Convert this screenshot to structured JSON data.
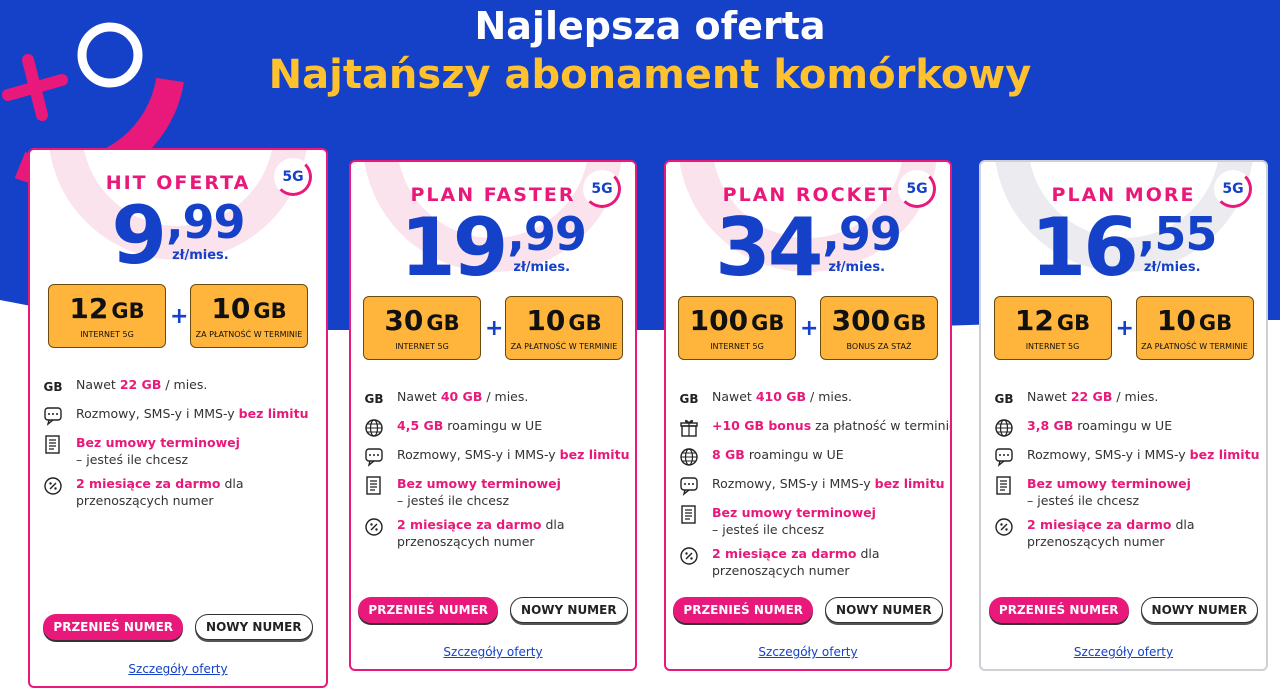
{
  "header": {
    "title": "Najlepsza oferta",
    "subtitle": "Najtańszy abonament komórkowy"
  },
  "plans": [
    {
      "name": "HIT OFERTA",
      "badge": "5G",
      "border": "#e8197a",
      "price_whole": "9",
      "price_fraction": ",99",
      "price_unit": "zł/mies.",
      "boxes": [
        {
          "amount": "12",
          "unit": "GB",
          "label": "INTERNET 5G"
        },
        {
          "amount": "10",
          "unit": "GB",
          "label": "ZA PŁATNOŚĆ W TERMINIE"
        }
      ],
      "box_joiner": "+",
      "features": [
        {
          "icon_text": "GB",
          "lines": [
            [
              "Nawet ",
              {
                "text": "22 GB",
                "hl": true
              },
              " / mies."
            ]
          ]
        },
        {
          "icon": "chat",
          "lines": [
            [
              "Rozmowy, SMS-y i MMS-y ",
              {
                "text": "bez limitu",
                "hl": true
              }
            ]
          ]
        },
        {
          "icon": "doc",
          "lines": [
            [
              {
                "text": "Bez umowy terminowej",
                "hl": true
              }
            ],
            [
              "– jesteś ile chcesz"
            ]
          ]
        },
        {
          "icon": "percent",
          "lines": [
            [
              {
                "text": "2 miesiące za darmo",
                "hl": true
              },
              " dla"
            ],
            [
              "przenoszących numer"
            ]
          ]
        }
      ],
      "buttons": [
        "PRZENIEŚ NUMER",
        "NOWY NUMER"
      ],
      "link": "Szczegóły oferty"
    },
    {
      "name": "PLAN FASTER",
      "badge": "5G",
      "border": "#e8197a",
      "price_whole": "19",
      "price_fraction": ",99",
      "price_unit": "zł/mies.",
      "boxes": [
        {
          "amount": "30",
          "unit": "GB",
          "label": "INTERNET 5G"
        },
        {
          "amount": "10",
          "unit": "GB",
          "label": "ZA PŁATNOŚĆ W TERMINIE"
        }
      ],
      "box_joiner": "+",
      "features": [
        {
          "icon_text": "GB",
          "lines": [
            [
              "Nawet ",
              {
                "text": "40 GB",
                "hl": true
              },
              " / mies."
            ]
          ]
        },
        {
          "icon": "globe",
          "lines": [
            [
              {
                "text": "4,5 GB",
                "hl": true
              },
              " roamingu w UE"
            ]
          ]
        },
        {
          "icon": "chat",
          "lines": [
            [
              "Rozmowy, SMS-y i MMS-y ",
              {
                "text": "bez limitu",
                "hl": true
              }
            ]
          ]
        },
        {
          "icon": "doc",
          "lines": [
            [
              {
                "text": "Bez umowy terminowej",
                "hl": true
              }
            ],
            [
              "– jesteś ile chcesz"
            ]
          ]
        },
        {
          "icon": "percent",
          "lines": [
            [
              {
                "text": "2 miesiące za darmo",
                "hl": true
              },
              " dla"
            ],
            [
              "przenoszących numer"
            ]
          ]
        }
      ],
      "buttons": [
        "PRZENIEŚ NUMER",
        "NOWY NUMER"
      ],
      "link": "Szczegóły oferty"
    },
    {
      "name": "PLAN ROCKET",
      "badge": "5G",
      "border": "#e8197a",
      "price_whole": "34",
      "price_fraction": ",99",
      "price_unit": "zł/mies.",
      "boxes": [
        {
          "amount": "100",
          "unit": "GB",
          "label": "INTERNET 5G"
        },
        {
          "amount": "300",
          "unit": "GB",
          "label": "BONUS ZA STAŻ"
        }
      ],
      "box_joiner": "+",
      "features": [
        {
          "icon_text": "GB",
          "lines": [
            [
              "Nawet ",
              {
                "text": "410 GB",
                "hl": true
              },
              " / mies."
            ]
          ]
        },
        {
          "icon": "gift",
          "lines": [
            [
              {
                "text": "+10 GB bonus",
                "hl": true
              },
              " za płatność w terminie"
            ]
          ]
        },
        {
          "icon": "globe",
          "lines": [
            [
              {
                "text": "8 GB",
                "hl": true
              },
              " roamingu w UE"
            ]
          ]
        },
        {
          "icon": "chat",
          "lines": [
            [
              "Rozmowy, SMS-y i MMS-y ",
              {
                "text": "bez limitu",
                "hl": true
              }
            ]
          ]
        },
        {
          "icon": "doc",
          "lines": [
            [
              {
                "text": "Bez umowy terminowej",
                "hl": true
              }
            ],
            [
              "– jesteś ile chcesz"
            ]
          ]
        },
        {
          "icon": "percent",
          "lines": [
            [
              {
                "text": "2 miesiące za darmo",
                "hl": true
              },
              " dla"
            ],
            [
              "przenoszących numer"
            ]
          ]
        }
      ],
      "buttons": [
        "PRZENIEŚ NUMER",
        "NOWY NUMER"
      ],
      "link": "Szczegóły oferty"
    },
    {
      "name": "PLAN MORE",
      "badge": "5G",
      "border": "#cfcfd6",
      "price_whole": "16",
      "price_fraction": ",55",
      "price_unit": "zł/mies.",
      "boxes": [
        {
          "amount": "12",
          "unit": "GB",
          "label": "INTERNET 5G"
        },
        {
          "amount": "10",
          "unit": "GB",
          "label": "ZA PŁATNOŚĆ W TERMINIE"
        }
      ],
      "box_joiner": "+",
      "features": [
        {
          "icon_text": "GB",
          "lines": [
            [
              "Nawet ",
              {
                "text": "22 GB",
                "hl": true
              },
              " / mies."
            ]
          ]
        },
        {
          "icon": "globe",
          "lines": [
            [
              {
                "text": "3,8 GB",
                "hl": true
              },
              " roamingu w UE"
            ]
          ]
        },
        {
          "icon": "chat",
          "lines": [
            [
              "Rozmowy, SMS-y i MMS-y ",
              {
                "text": "bez limitu",
                "hl": true
              }
            ]
          ]
        },
        {
          "icon": "doc",
          "lines": [
            [
              {
                "text": "Bez umowy terminowej",
                "hl": true
              }
            ],
            [
              "– jesteś ile chcesz"
            ]
          ]
        },
        {
          "icon": "percent",
          "lines": [
            [
              {
                "text": "2 miesiące za darmo",
                "hl": true
              },
              " dla"
            ],
            [
              "przenoszących numer"
            ]
          ]
        }
      ],
      "buttons": [
        "PRZENIEŚ NUMER",
        "NOWY NUMER"
      ],
      "link": "Szczegóły oferty"
    }
  ]
}
